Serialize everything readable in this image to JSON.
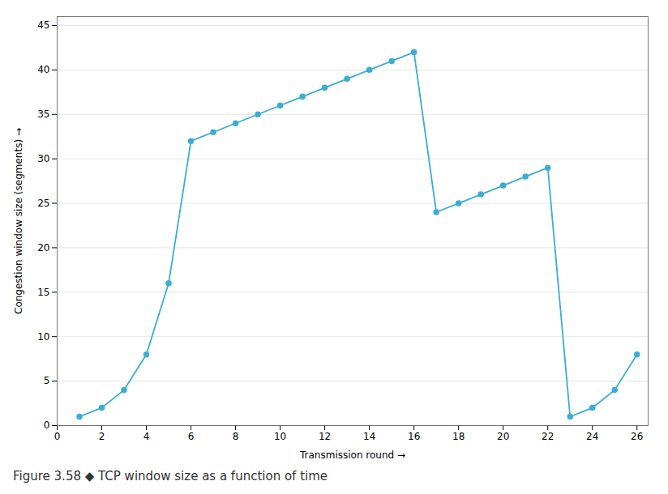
{
  "chart_data": {
    "type": "line",
    "caption": "Figure 3.58 ◆ TCP window size as a function of time",
    "x_label": "Transmission round",
    "y_label": "Congestion window size (segments)",
    "x": [
      1,
      2,
      3,
      4,
      5,
      6,
      7,
      8,
      9,
      10,
      11,
      12,
      13,
      14,
      15,
      16,
      17,
      18,
      19,
      20,
      21,
      22,
      23,
      24,
      25,
      26
    ],
    "values": [
      1,
      2,
      4,
      8,
      16,
      32,
      33,
      34,
      35,
      36,
      37,
      38,
      39,
      40,
      41,
      42,
      24,
      25,
      26,
      27,
      28,
      29,
      1,
      2,
      4,
      8
    ],
    "color": "#3BADD4",
    "marker": "circle",
    "xlim": [
      0,
      26.5
    ],
    "ylim": [
      0,
      46
    ],
    "xticks": [
      0,
      2,
      4,
      6,
      8,
      10,
      12,
      14,
      16,
      18,
      20,
      22,
      24,
      26
    ],
    "yticks": [
      0,
      5,
      10,
      15,
      20,
      25,
      30,
      35,
      40,
      45
    ],
    "grid": "y"
  }
}
